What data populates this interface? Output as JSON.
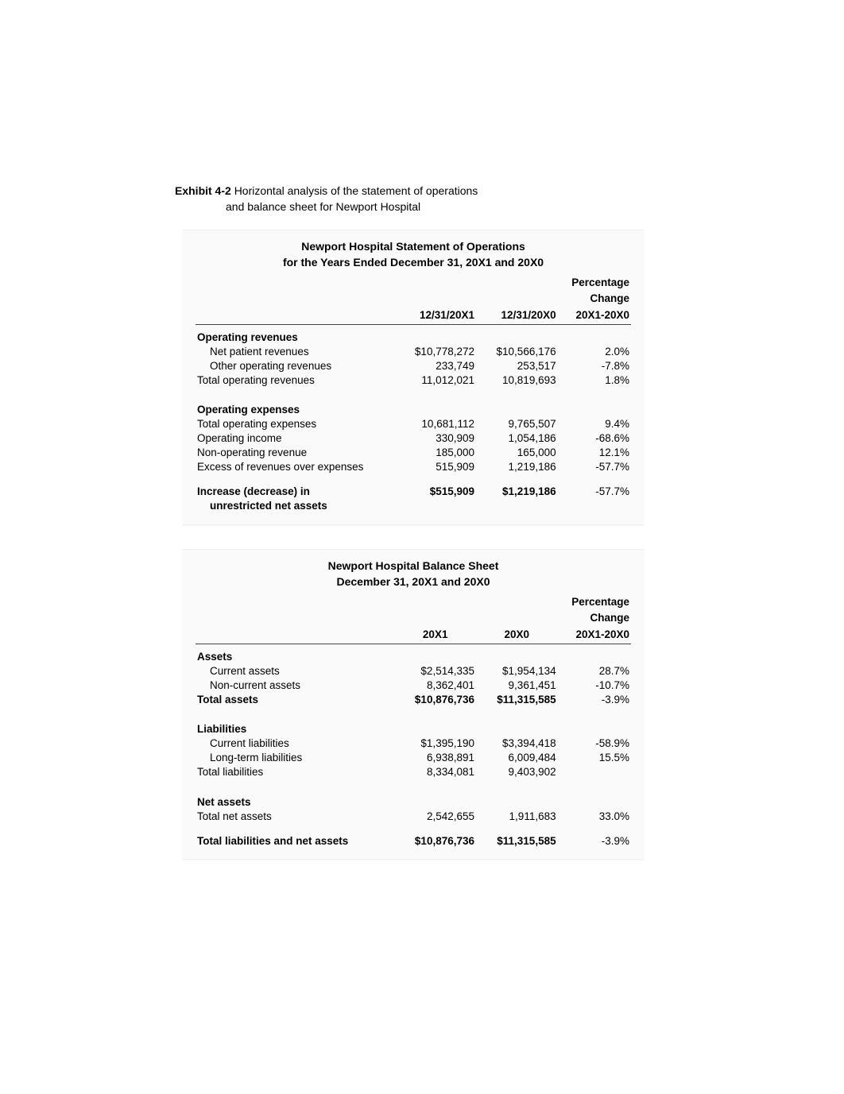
{
  "exhibit": {
    "label": "Exhibit 4-2",
    "title_line1": "Horizontal analysis of the statement of operations",
    "title_line2": "and balance sheet for Newport Hospital"
  },
  "colors": {
    "page_bg": "#ffffff",
    "panel_bg": "#fafafa",
    "text": "#000000",
    "rule": "#444444"
  },
  "fonts": {
    "family": "Arial, Helvetica, sans-serif",
    "body_size_pt": 10,
    "title_size_pt": 10.5
  },
  "statement_ops": {
    "type": "table",
    "title_line1": "Newport Hospital Statement of Operations",
    "title_line2": "for the Years Ended December 31, 20X1 and 20X0",
    "columns": {
      "label": "",
      "col1": "12/31/20X1",
      "col2": "12/31/20X0",
      "col3_line1": "Percentage",
      "col3_line2": "Change",
      "col3_line3": "20X1-20X0"
    },
    "sections": {
      "operating_revenues": {
        "heading": "Operating revenues",
        "rows": [
          {
            "label": "Net patient revenues",
            "v1": "$10,778,272",
            "v2": "$10,566,176",
            "pct": "2.0%",
            "indent": true
          },
          {
            "label": "Other operating revenues",
            "v1": "233,749",
            "v2": "253,517",
            "pct": "-7.8%",
            "indent": true
          },
          {
            "label": "Total operating revenues",
            "v1": "11,012,021",
            "v2": "10,819,693",
            "pct": "1.8%",
            "indent": false
          }
        ]
      },
      "operating_expenses": {
        "heading": "Operating expenses",
        "rows": [
          {
            "label": "Total operating expenses",
            "v1": "10,681,112",
            "v2": "9,765,507",
            "pct": "9.4%",
            "indent": false
          },
          {
            "label": "Operating income",
            "v1": "330,909",
            "v2": "1,054,186",
            "pct": "-68.6%",
            "indent": false
          },
          {
            "label": "Non-operating revenue",
            "v1": "185,000",
            "v2": "165,000",
            "pct": "12.1%",
            "indent": false
          },
          {
            "label": "Excess of revenues over expenses",
            "v1": "515,909",
            "v2": "1,219,186",
            "pct": "-57.7%",
            "indent": false
          }
        ]
      },
      "summary": {
        "label_line1": "Increase (decrease) in",
        "label_line2": "unrestricted net assets",
        "v1": "$515,909",
        "v2": "$1,219,186",
        "pct": "-57.7%"
      }
    }
  },
  "balance_sheet": {
    "type": "table",
    "title_line1": "Newport Hospital Balance Sheet",
    "title_line2": "December 31, 20X1 and 20X0",
    "columns": {
      "label": "",
      "col1": "20X1",
      "col2": "20X0",
      "col3_line1": "Percentage",
      "col3_line2": "Change",
      "col3_line3": "20X1-20X0"
    },
    "sections": {
      "assets": {
        "heading": "Assets",
        "rows": [
          {
            "label": "Current assets",
            "v1": "$2,514,335",
            "v2": "$1,954,134",
            "pct": "28.7%",
            "indent": true,
            "bold": false
          },
          {
            "label": "Non-current assets",
            "v1": "8,362,401",
            "v2": "9,361,451",
            "pct": "-10.7%",
            "indent": true,
            "bold": false
          },
          {
            "label": "Total assets",
            "v1": "$10,876,736",
            "v2": "$11,315,585",
            "pct": "-3.9%",
            "indent": false,
            "bold": true
          }
        ]
      },
      "liabilities": {
        "heading": "Liabilities",
        "rows": [
          {
            "label": "Current liabilities",
            "v1": "$1,395,190",
            "v2": "$3,394,418",
            "pct": "-58.9%",
            "indent": true,
            "bold": false
          },
          {
            "label": "Long-term liabilities",
            "v1": "6,938,891",
            "v2": "6,009,484",
            "pct": "15.5%",
            "indent": true,
            "bold": false
          },
          {
            "label": "Total liabilities",
            "v1": "8,334,081",
            "v2": "9,403,902",
            "pct": "",
            "indent": false,
            "bold": false
          }
        ]
      },
      "net_assets": {
        "heading": "Net assets",
        "rows": [
          {
            "label": "Total net assets",
            "v1": "2,542,655",
            "v2": "1,911,683",
            "pct": "33.0%",
            "indent": false,
            "bold": false
          }
        ]
      },
      "summary": {
        "label": "Total liabilities and net assets",
        "v1": "$10,876,736",
        "v2": "$11,315,585",
        "pct": "-3.9%"
      }
    }
  }
}
